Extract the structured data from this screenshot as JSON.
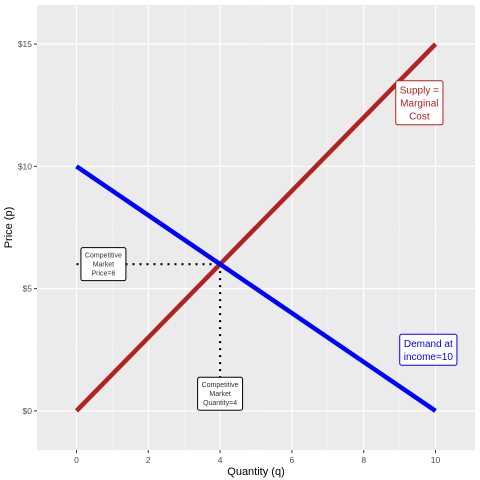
{
  "chart_data": {
    "type": "line",
    "xlabel": "Quantity (q)",
    "ylabel": "Price (p)",
    "xlim": [
      -1.1,
      11.1
    ],
    "ylim": [
      -1.6,
      16.6
    ],
    "x_ticks": [
      0,
      2,
      4,
      6,
      8,
      10
    ],
    "x_tick_labels": [
      "0",
      "2",
      "4",
      "6",
      "8",
      "10"
    ],
    "y_ticks": [
      0,
      5,
      10,
      15
    ],
    "y_tick_labels": [
      "$0",
      "$5",
      "$10",
      "$15"
    ],
    "grid": true,
    "series": [
      {
        "x": [
          0,
          10
        ],
        "y": [
          0,
          15
        ],
        "color": "#b22222"
      },
      {
        "x": [
          0,
          10
        ],
        "y": [
          10,
          0
        ],
        "color": "#0000ff"
      }
    ],
    "equilibrium": {
      "x": 4,
      "y": 6
    },
    "annotations": [
      {
        "lines": [
          "Supply =",
          "Marginal",
          "Cost"
        ],
        "x": 9.55,
        "y": 12.6,
        "color": "#b22222"
      },
      {
        "lines": [
          "Demand at",
          "income=10"
        ],
        "x": 9.8,
        "y": 2.5,
        "color": "#0000ff"
      },
      {
        "lines": [
          "Competitive",
          "Market",
          "Price=6"
        ],
        "x": 0.75,
        "y": 6.0,
        "color": "#000000"
      },
      {
        "lines": [
          "Competitive",
          "Market",
          "Quantity=4"
        ],
        "x": 4.0,
        "y": 0.7,
        "color": "#000000"
      }
    ]
  }
}
